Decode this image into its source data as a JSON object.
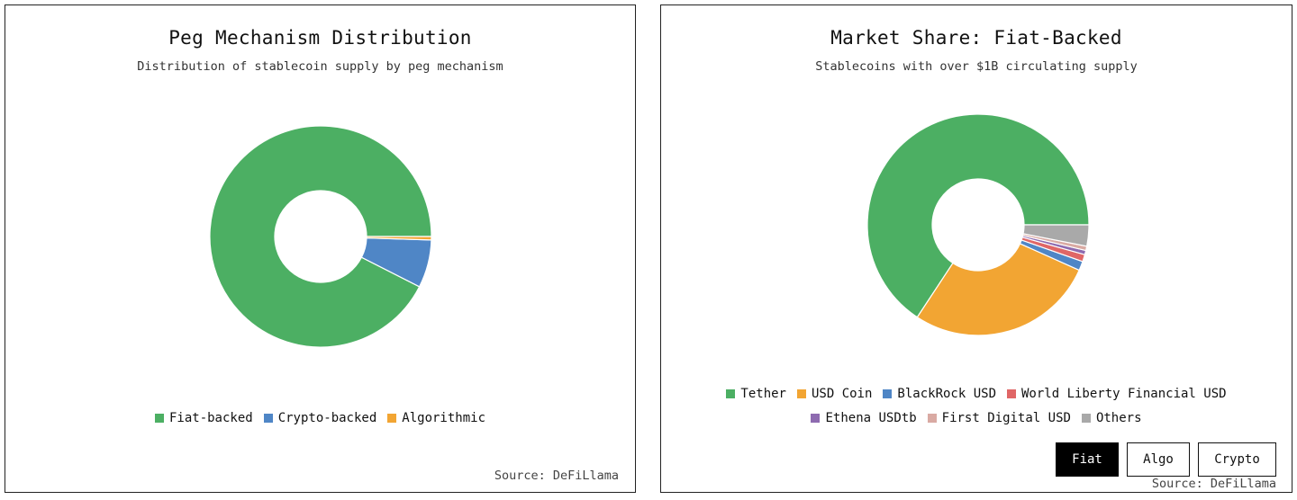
{
  "chart_data": [
    {
      "type": "pie",
      "title": "Peg Mechanism Distribution",
      "subtitle": "Distribution of stablecoin supply by peg mechanism",
      "labels": [
        "Fiat-backed",
        "Crypto-backed",
        "Algorithmic"
      ],
      "values": [
        92.5,
        7.0,
        0.5
      ],
      "unit": "%",
      "colors": [
        "#4caf63",
        "#4f86c6",
        "#f2a533"
      ],
      "legend_position": "bottom",
      "source": "Source: DeFiLlama"
    },
    {
      "type": "pie",
      "title": "Market Share: Fiat-Backed",
      "subtitle": "Stablecoins with over $1B circulating supply",
      "labels": [
        "Tether",
        "USD Coin",
        "BlackRock USD",
        "World Liberty Financial USD",
        "Ethena USDtb",
        "First Digital USD",
        "Others"
      ],
      "values": [
        63.5,
        26.6,
        1.3,
        1.0,
        0.6,
        0.6,
        3.0
      ],
      "unit": "%",
      "colors": [
        "#4caf63",
        "#f2a533",
        "#4f86c6",
        "#e06666",
        "#8e6bb0",
        "#d9aaa3",
        "#a9a9a9"
      ],
      "legend_position": "bottom",
      "source": "Source: DeFiLlama"
    }
  ],
  "toggle": {
    "options": [
      "Fiat",
      "Algo",
      "Crypto"
    ],
    "selected": "Fiat"
  }
}
